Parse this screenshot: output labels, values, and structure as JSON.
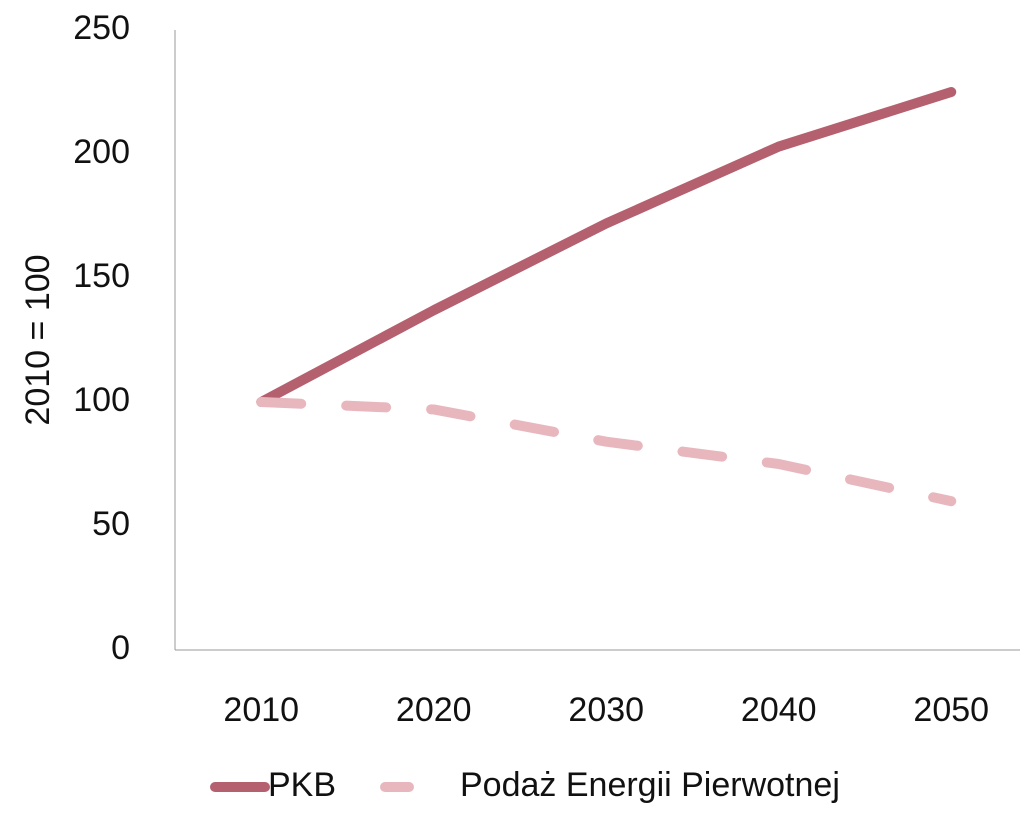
{
  "chart_data": {
    "type": "line",
    "y_label": "2010 = 100",
    "categories": [
      "2010",
      "2020",
      "2030",
      "2040",
      "2050"
    ],
    "series": [
      {
        "name": "PKB",
        "color": "#b5606f",
        "dash": false,
        "values": [
          100,
          137,
          172,
          203,
          225
        ]
      },
      {
        "name": "Podaż Energii Pierwotnej",
        "color": "#e8b7be",
        "dash": true,
        "values": [
          100,
          97,
          84,
          75,
          60
        ]
      }
    ],
    "ylim": [
      0,
      250
    ],
    "yticks": [
      0,
      50,
      100,
      150,
      200,
      250
    ],
    "grid": false,
    "legend": "bottom"
  }
}
